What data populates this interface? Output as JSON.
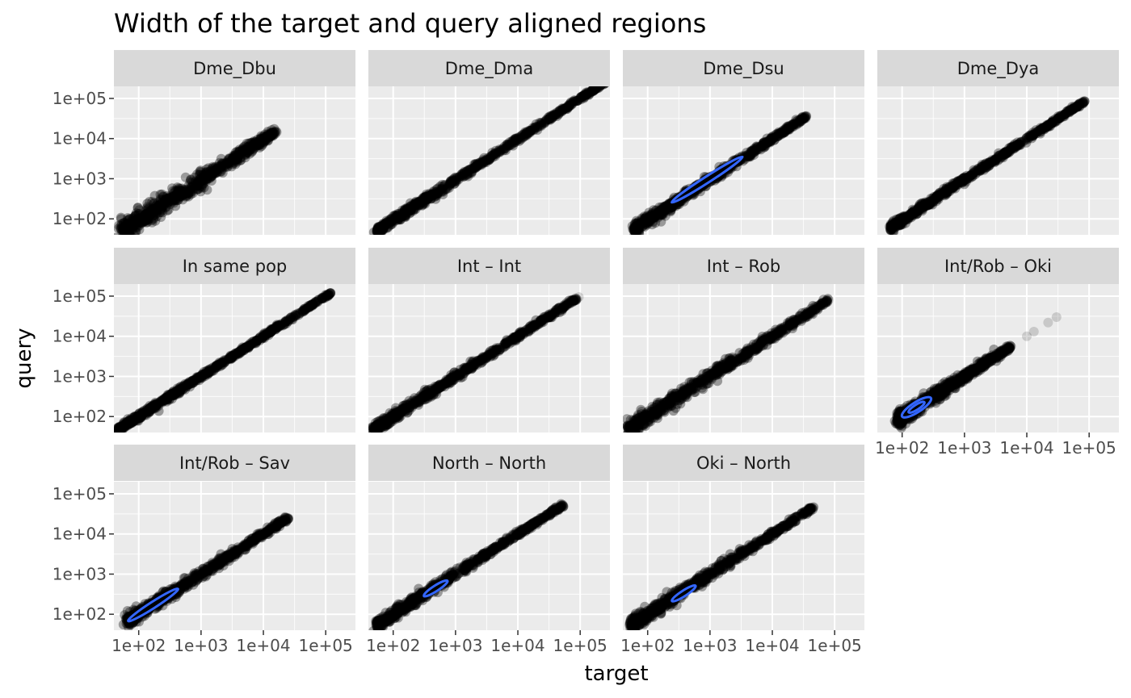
{
  "chart_data": {
    "type": "scatter",
    "title": "Width of the target and query aligned regions",
    "xlabel": "target",
    "ylabel": "query",
    "x_scale": "log10",
    "y_scale": "log10",
    "xlim": [
      40,
      300000
    ],
    "ylim": [
      40,
      200000
    ],
    "x_tick_values": [
      100,
      1000,
      10000,
      100000
    ],
    "x_tick_labels": [
      "1e+02",
      "1e+03",
      "1e+04",
      "1e+05"
    ],
    "y_tick_values": [
      100,
      1000,
      10000,
      100000
    ],
    "y_tick_labels": [
      "1e+02",
      "1e+03",
      "1e+04",
      "1e+05"
    ],
    "grid": true,
    "point_color": "#000000",
    "contour_color": "#3366FF",
    "panels": [
      {
        "name": "Dme_Dbu",
        "x_range": [
          55,
          16000
        ],
        "y_range": [
          50,
          15000
        ],
        "spread": 0.2,
        "outliers": [
          [
            12000,
            14000
          ],
          [
            16000,
            15500
          ]
        ],
        "contours": []
      },
      {
        "name": "Dme_Dma",
        "x_range": [
          55,
          250000
        ],
        "y_range": [
          50,
          250000
        ],
        "spread": 0.08,
        "outliers": [
          [
            200000,
            220000
          ],
          [
            250000,
            250000
          ]
        ],
        "contours": []
      },
      {
        "name": "Dme_Dsu",
        "x_range": [
          60,
          35000
        ],
        "y_range": [
          55,
          35000
        ],
        "spread": 0.1,
        "outliers": [
          [
            28000,
            30000
          ],
          [
            35000,
            35000
          ]
        ],
        "contours": [
          {
            "cx": 900,
            "cy": 950,
            "length": 1.35,
            "width": 0.1
          }
        ]
      },
      {
        "name": "Dme_Dya",
        "x_range": [
          65,
          90000
        ],
        "y_range": [
          60,
          90000
        ],
        "spread": 0.07,
        "outliers": [
          [
            80000,
            85000
          ]
        ],
        "contours": []
      },
      {
        "name": "In same pop",
        "x_range": [
          45,
          120000
        ],
        "y_range": [
          45,
          120000
        ],
        "spread": 0.06,
        "outliers": [
          [
            100000,
            110000
          ],
          [
            120000,
            120000
          ]
        ],
        "contours": []
      },
      {
        "name": "Int – Int",
        "x_range": [
          48,
          95000
        ],
        "y_range": [
          48,
          95000
        ],
        "spread": 0.09,
        "outliers": [
          [
            75000,
            80000
          ],
          [
            95000,
            95000
          ]
        ],
        "contours": []
      },
      {
        "name": "Int – Rob",
        "x_range": [
          50,
          80000
        ],
        "y_range": [
          50,
          80000
        ],
        "spread": 0.14,
        "outliers": [
          [
            60000,
            65000
          ],
          [
            80000,
            80000
          ]
        ],
        "contours": []
      },
      {
        "name": "Int/Rob – Oki",
        "x_range": [
          85,
          5500
        ],
        "y_range": [
          85,
          5500
        ],
        "spread": 0.14,
        "outliers": [
          [
            10000,
            10000
          ],
          [
            13000,
            13000
          ],
          [
            22000,
            22000
          ],
          [
            30000,
            30000
          ]
        ],
        "contours": [
          {
            "cx": 170,
            "cy": 170,
            "length": 0.55,
            "width": 0.16
          },
          {
            "cx": 170,
            "cy": 170,
            "length": 0.3,
            "width": 0.08
          }
        ]
      },
      {
        "name": "Int/Rob – Sav",
        "x_range": [
          65,
          25000
        ],
        "y_range": [
          65,
          25000
        ],
        "spread": 0.12,
        "outliers": [
          [
            18000,
            20000
          ],
          [
            25000,
            25000
          ]
        ],
        "contours": [
          {
            "cx": 170,
            "cy": 170,
            "length": 0.95,
            "width": 0.1
          }
        ]
      },
      {
        "name": "North – North",
        "x_range": [
          55,
          55000
        ],
        "y_range": [
          55,
          55000
        ],
        "spread": 0.1,
        "outliers": [
          [
            48000,
            50000
          ]
        ],
        "contours": [
          {
            "cx": 480,
            "cy": 440,
            "length": 0.45,
            "width": 0.09
          }
        ]
      },
      {
        "name": "Oki – North",
        "x_range": [
          55,
          45000
        ],
        "y_range": [
          55,
          45000
        ],
        "spread": 0.12,
        "outliers": [
          [
            38000,
            40000
          ],
          [
            45000,
            45000
          ]
        ],
        "contours": [
          {
            "cx": 380,
            "cy": 330,
            "length": 0.45,
            "width": 0.09
          }
        ]
      }
    ]
  }
}
